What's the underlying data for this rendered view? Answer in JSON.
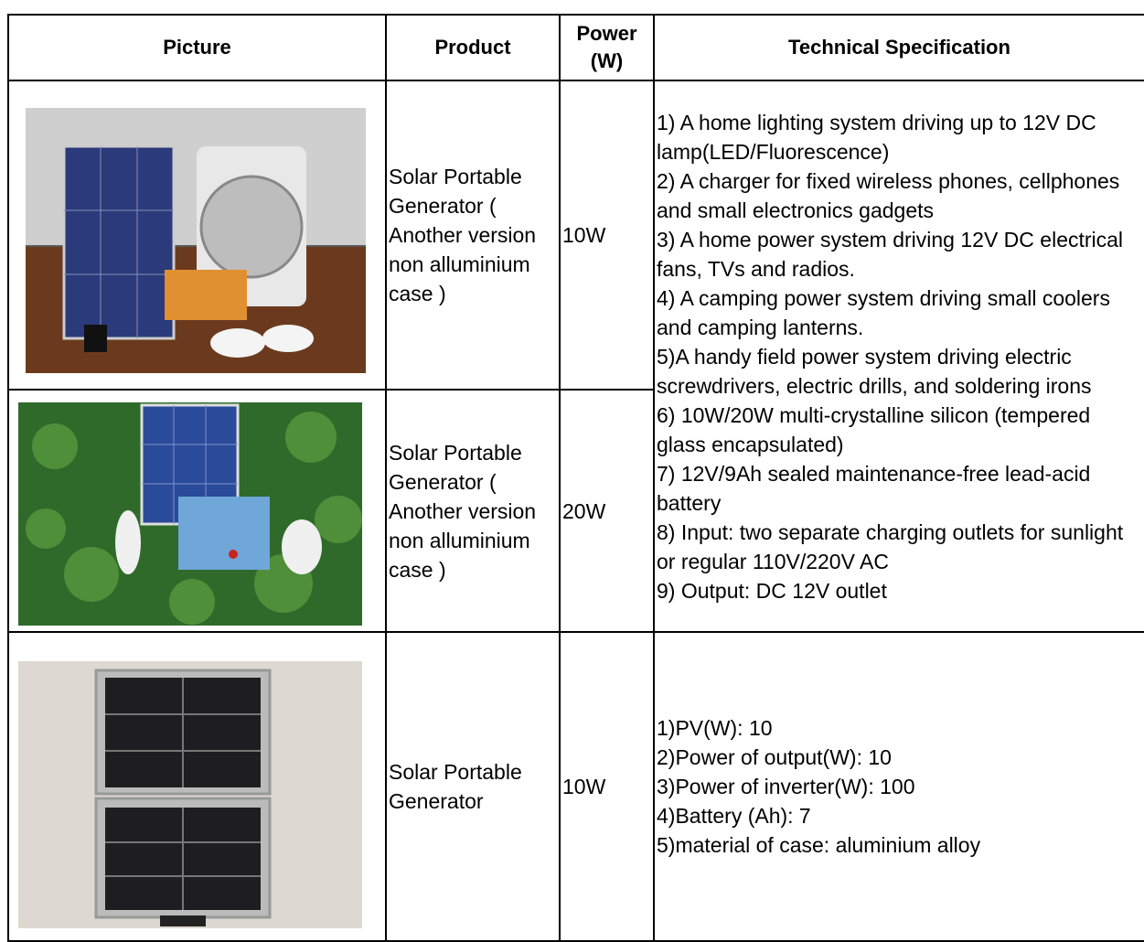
{
  "table": {
    "headers": [
      "Picture",
      "Product",
      "Power (W)",
      "Technical Specification"
    ],
    "rows": [
      {
        "product": "Solar Portable Generator ( Another version non alluminium case )",
        "power": "10W"
      },
      {
        "product": "Solar Portable Generator ( Another version non alluminium case )",
        "power": "20W"
      },
      {
        "product": "Solar Portable Generator",
        "power": "10W"
      }
    ],
    "specifications": [
      [
        "1) A home lighting system driving up to 12V DC lamp(LED/Fluorescence)",
        "2) A charger for fixed wireless phones, cellphones and small electronics gadgets",
        "3) A home power system driving 12V DC electrical fans, TVs and radios.",
        "4) A camping power system driving small coolers and camping lanterns.",
        "5)A handy field power system driving electric screwdrivers, electric drills, and soldering irons",
        "6) 10W/20W multi-crystalline silicon (tempered glass encapsulated)",
        "7) 12V/9Ah sealed maintenance-free lead-acid battery",
        "8) Input: two separate charging outlets for sunlight or regular 110V/220V AC",
        "9) Output: DC 12V outlet"
      ],
      [
        "1)PV(W): 10",
        "2)Power of output(W): 10",
        "3)Power of inverter(W): 100",
        "4)Battery (Ah): 7",
        "5)material of case: aluminium alloy"
      ]
    ]
  }
}
